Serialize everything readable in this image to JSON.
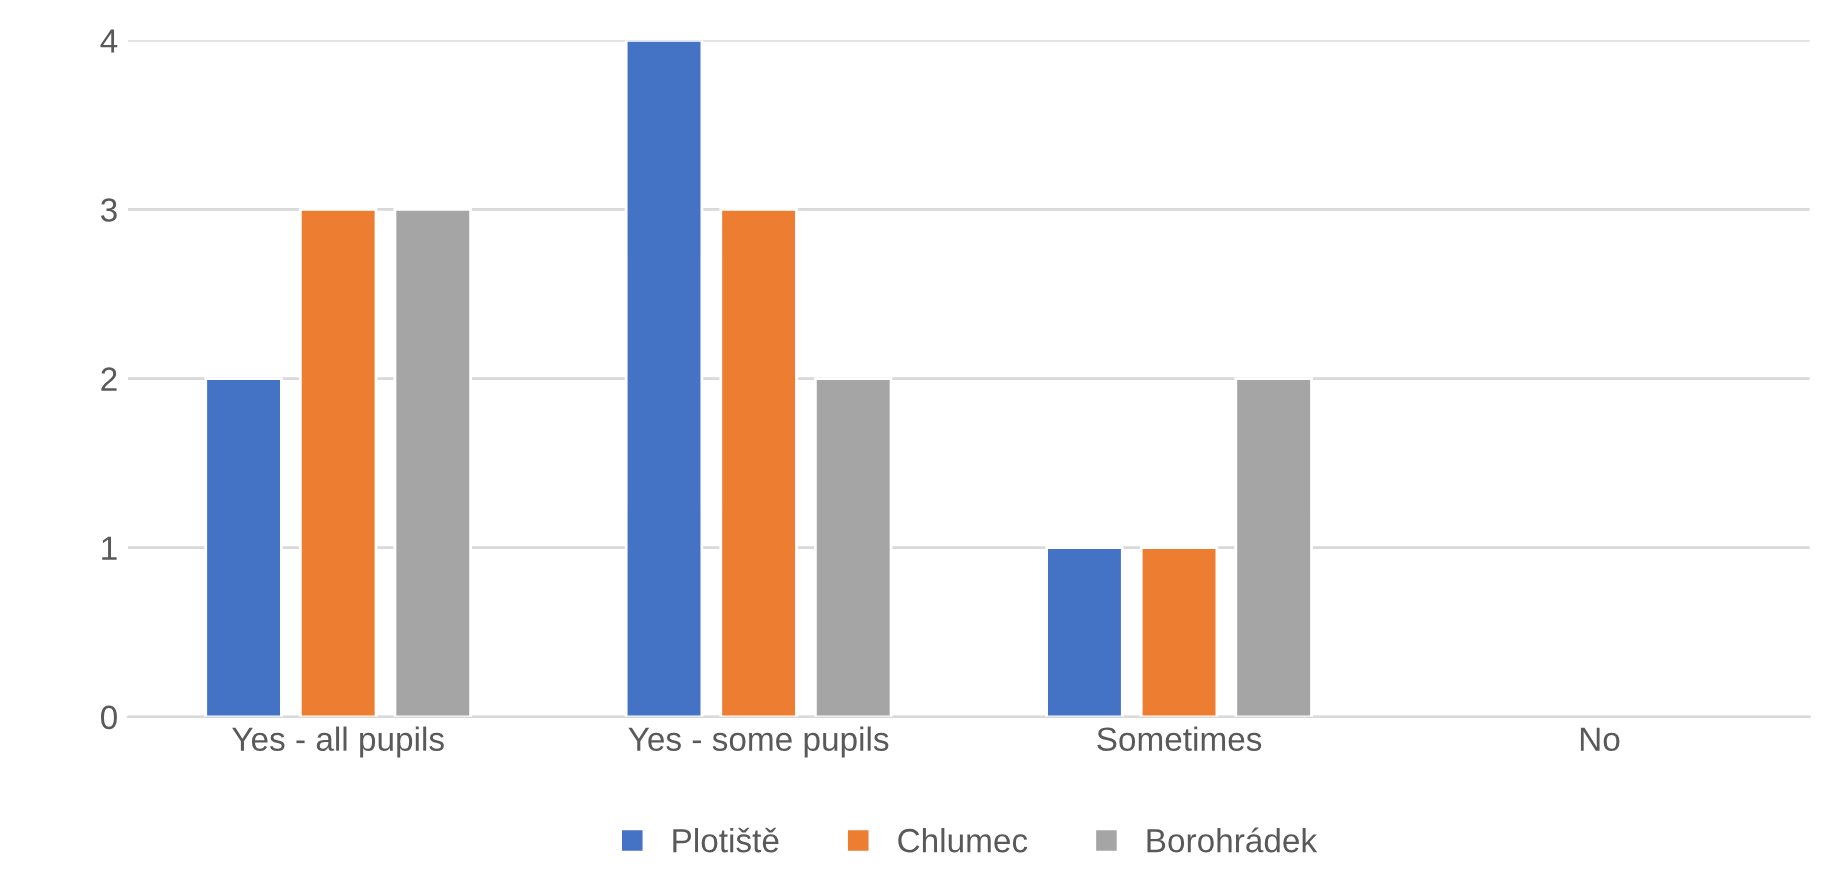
{
  "chart_data": {
    "type": "bar",
    "categories": [
      "Yes - all pupils",
      "Yes - some pupils",
      "Sometimes",
      "No"
    ],
    "series": [
      {
        "name": "Plotiště",
        "color": "#4472c4",
        "values": [
          2,
          4,
          1,
          null
        ]
      },
      {
        "name": "Chlumec",
        "color": "#ed7d31",
        "values": [
          3,
          3,
          1,
          null
        ]
      },
      {
        "name": "Borohrádek",
        "color": "#a5a5a5",
        "values": [
          3,
          2,
          2,
          null
        ]
      }
    ],
    "ylim": [
      0,
      4
    ],
    "yticks": [
      0,
      1,
      2,
      3,
      4
    ],
    "grid": "y",
    "legend": "bottom"
  }
}
